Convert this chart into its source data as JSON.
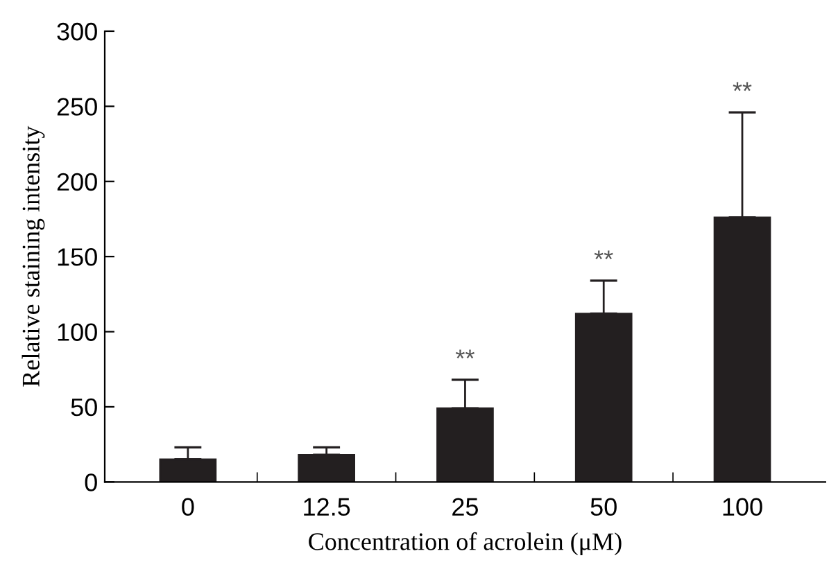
{
  "chart_data": {
    "type": "bar",
    "xlabel": "Concentration of acrolein (μM)",
    "ylabel": "Relative staining intensity",
    "categories": [
      "0",
      "12.5",
      "25",
      "50",
      "100"
    ],
    "values": [
      15,
      18,
      49,
      112,
      176
    ],
    "errors": [
      [
        15,
        23
      ],
      [
        18,
        23
      ],
      [
        49,
        68
      ],
      [
        112,
        134
      ],
      [
        176,
        246
      ]
    ],
    "color": "#231f20",
    "ylim": [
      0,
      300
    ],
    "yticks": [
      0,
      50,
      100,
      150,
      200,
      250,
      300
    ],
    "grid": false,
    "annotations": [
      {
        "text": "**",
        "x": "25",
        "y": 68
      },
      {
        "text": "**",
        "x": "50",
        "y": 134
      },
      {
        "text": "**",
        "x": "100",
        "y": 246
      }
    ]
  }
}
